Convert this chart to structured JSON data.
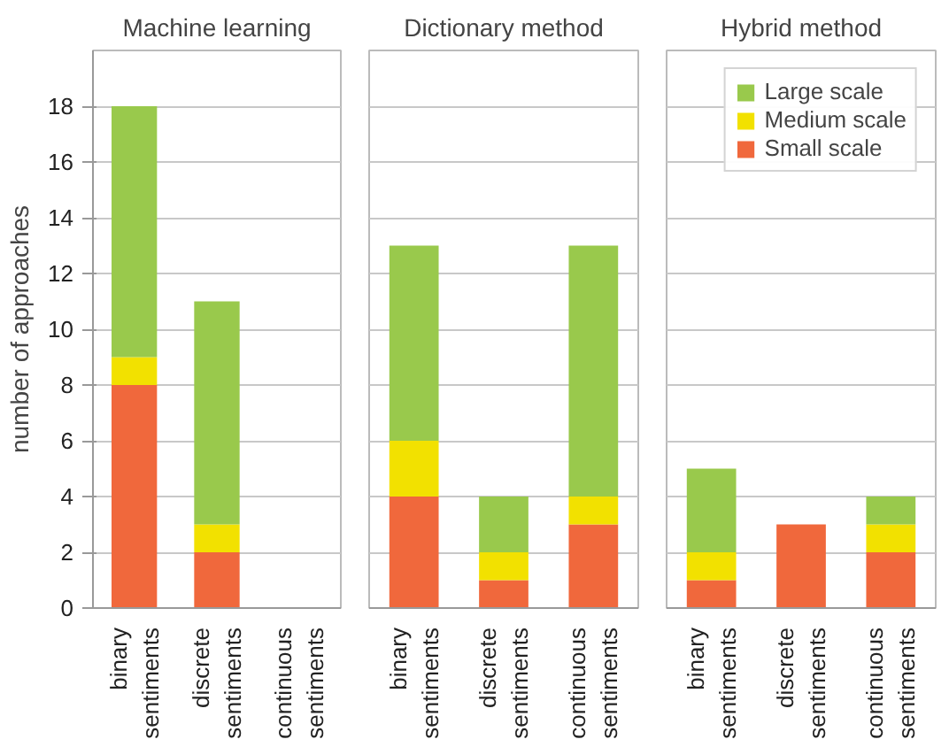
{
  "chart_data": [
    {
      "type": "bar",
      "title": "Machine learning",
      "ylabel": "number of approaches",
      "categories": [
        "binary sentiments",
        "discrete sentiments",
        "continuous sentiments"
      ],
      "stacked": true,
      "series": [
        {
          "color": "#f0683c",
          "values": [
            8,
            2,
            0
          ]
        },
        {
          "color": "#f2e100",
          "values": [
            1,
            1,
            0
          ]
        },
        {
          "color": "#99c94c",
          "values": [
            9,
            8,
            0
          ]
        }
      ],
      "ylim": [
        0,
        20
      ],
      "yticks": [
        0,
        2,
        4,
        6,
        8,
        10,
        12,
        14,
        16,
        18
      ],
      "grid": "y"
    },
    {
      "type": "bar",
      "title": "Dictionary method",
      "categories": [
        "binary sentiments",
        "discrete sentiments",
        "continuous sentiments"
      ],
      "stacked": true,
      "series": [
        {
          "color": "#f0683c",
          "values": [
            4,
            1,
            3
          ]
        },
        {
          "color": "#f2e100",
          "values": [
            2,
            1,
            1
          ]
        },
        {
          "color": "#99c94c",
          "values": [
            7,
            2,
            9
          ]
        }
      ],
      "ylim": [
        0,
        20
      ],
      "yticks": [
        0,
        2,
        4,
        6,
        8,
        10,
        12,
        14,
        16,
        18
      ],
      "grid": "y",
      "tick_labels": "x"
    },
    {
      "type": "bar",
      "title": "Hybrid method",
      "categories": [
        "binary sentiments",
        "discrete sentiments",
        "continuous sentiments"
      ],
      "stacked": true,
      "series": [
        {
          "name": "Small scale",
          "color": "#f0683c",
          "values": [
            1,
            3,
            2
          ]
        },
        {
          "name": "Medium scale",
          "color": "#f2e100",
          "values": [
            1,
            0,
            1
          ]
        },
        {
          "name": "Large scale",
          "color": "#99c94c",
          "values": [
            3,
            0,
            1
          ]
        }
      ],
      "ylim": [
        0,
        20
      ],
      "yticks": [
        0,
        2,
        4,
        6,
        8,
        10,
        12,
        14,
        16,
        18
      ],
      "grid": "y",
      "tick_labels": "x",
      "legend": "top right"
    }
  ]
}
